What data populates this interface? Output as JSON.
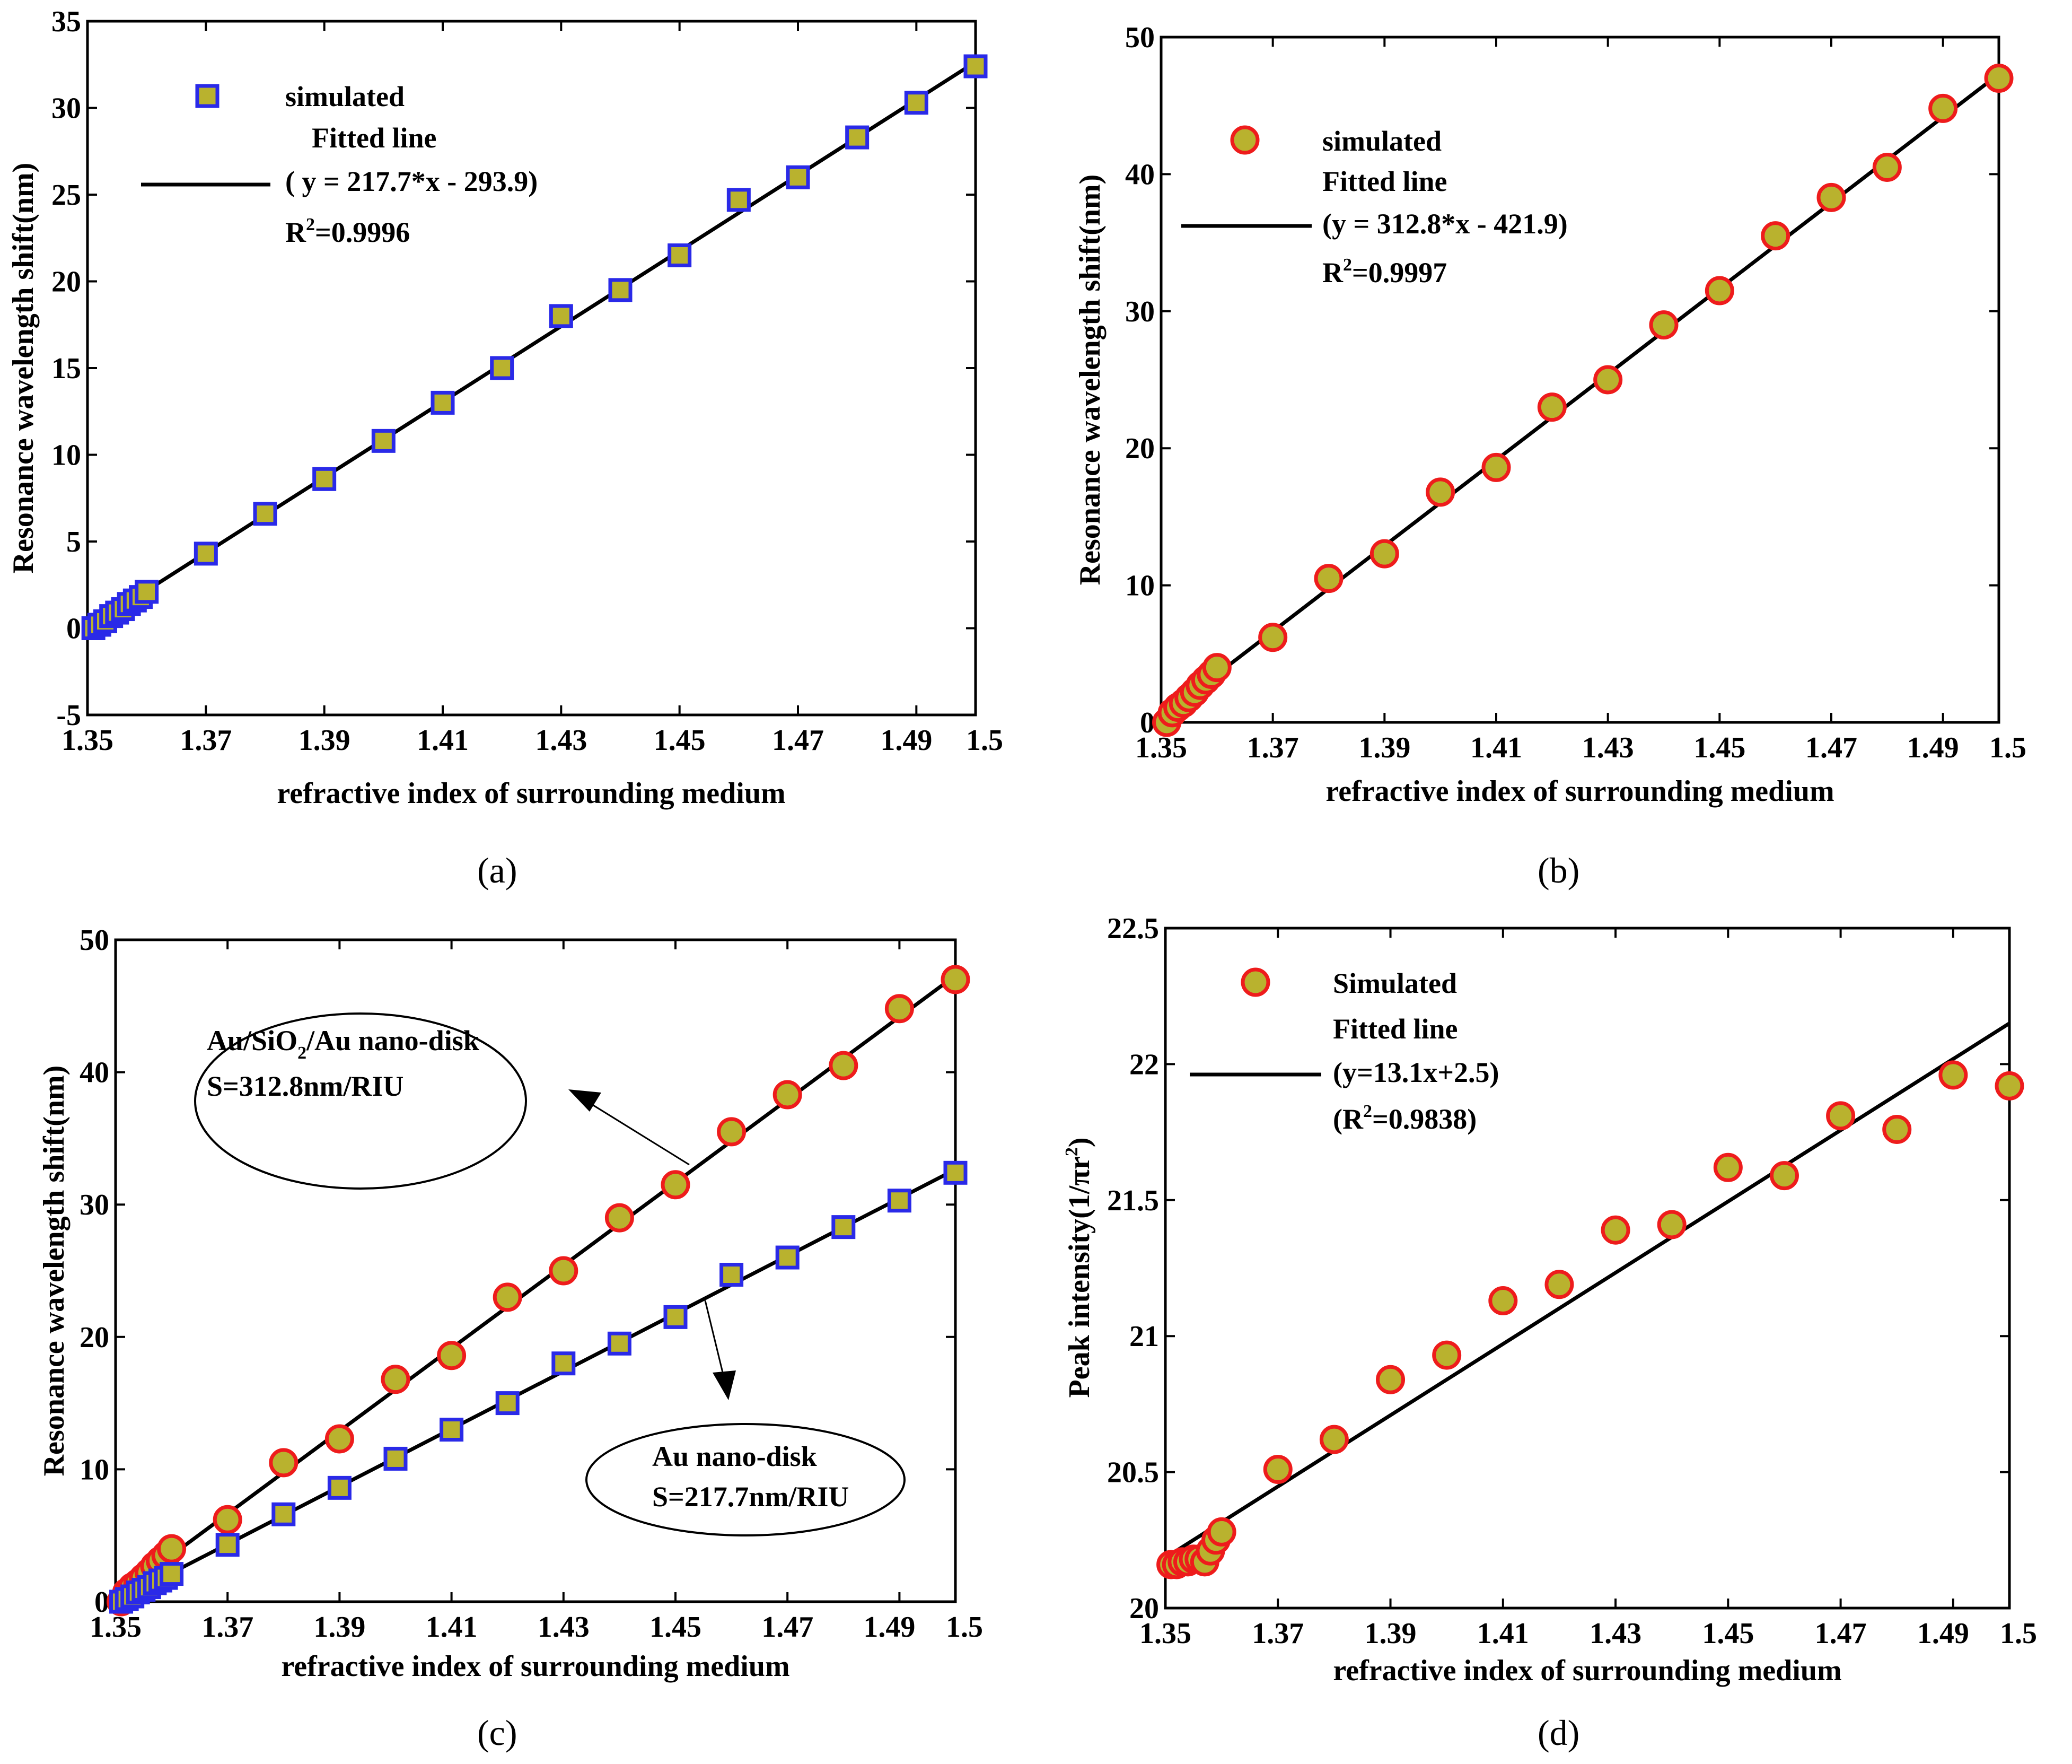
{
  "colors": {
    "marker_fill": "#b9b22e",
    "square_edge": "#2a2ae8",
    "circle_edge": "#ee1c1c",
    "line": "#000000"
  },
  "chart_data": [
    {
      "id": "a",
      "type": "scatter",
      "caption": "(a)",
      "xlabel": "refractive index of surrounding medium",
      "ylabel": "Resonance wavelength shift(nm)",
      "xlim": [
        1.35,
        1.5
      ],
      "ylim": [
        -5,
        35
      ],
      "xticks": [
        1.35,
        1.37,
        1.39,
        1.41,
        1.43,
        1.45,
        1.47,
        1.49,
        1.5
      ],
      "xtick_labels": [
        "1.35",
        "1.37",
        "1.39",
        "1.41",
        "1.43",
        "1.45",
        "1.47",
        "1.49",
        "1.5"
      ],
      "yticks": [
        -5,
        0,
        5,
        10,
        15,
        20,
        25,
        30,
        35
      ],
      "ytick_labels": [
        "-5",
        "0",
        "5",
        "10",
        "15",
        "20",
        "25",
        "30",
        "35"
      ],
      "series": [
        {
          "name": "simulated",
          "marker": "square",
          "x": [
            1.351,
            1.352,
            1.353,
            1.354,
            1.355,
            1.356,
            1.357,
            1.358,
            1.359,
            1.36,
            1.37,
            1.38,
            1.39,
            1.4,
            1.41,
            1.42,
            1.43,
            1.44,
            1.45,
            1.46,
            1.47,
            1.48,
            1.49,
            1.5
          ],
          "y": [
            0,
            0.2,
            0.4,
            0.7,
            0.9,
            1.1,
            1.4,
            1.6,
            1.8,
            2.1,
            4.3,
            6.6,
            8.6,
            10.8,
            13.0,
            15.0,
            18.0,
            19.5,
            21.5,
            24.7,
            26.0,
            28.3,
            30.3,
            32.4
          ]
        }
      ],
      "fit": {
        "name": "Fitted line",
        "slope": 217.7,
        "intercept": -293.9,
        "x_range": [
          1.351,
          1.5
        ]
      },
      "legend": {
        "placement": "top-left",
        "entries": [
          "simulated",
          "Fitted line",
          "( y = 217.7*x - 293.9)"
        ],
        "r2_prefix": "R",
        "r2_sup": "2",
        "r2_value": "=0.9996"
      }
    },
    {
      "id": "b",
      "type": "scatter",
      "caption": "(b)",
      "xlabel": "refractive index of surrounding medium",
      "ylabel": "Resonance wavelength shift(nm)",
      "xlim": [
        1.35,
        1.5
      ],
      "ylim": [
        0,
        50
      ],
      "xticks": [
        1.35,
        1.37,
        1.39,
        1.41,
        1.43,
        1.45,
        1.47,
        1.49,
        1.5
      ],
      "xtick_labels": [
        "1.35",
        "1.37",
        "1.39",
        "1.41",
        "1.43",
        "1.45",
        "1.47",
        "1.49",
        "1.5"
      ],
      "yticks": [
        0,
        10,
        20,
        30,
        40,
        50
      ],
      "ytick_labels": [
        "0",
        "10",
        "20",
        "30",
        "40",
        "50"
      ],
      "series": [
        {
          "name": "simulated",
          "marker": "circle",
          "x": [
            1.351,
            1.352,
            1.353,
            1.354,
            1.355,
            1.356,
            1.357,
            1.358,
            1.359,
            1.36,
            1.37,
            1.38,
            1.39,
            1.4,
            1.41,
            1.42,
            1.43,
            1.44,
            1.45,
            1.46,
            1.47,
            1.48,
            1.49,
            1.5
          ],
          "y": [
            0,
            0.7,
            1.1,
            1.4,
            1.8,
            2.2,
            2.7,
            3.1,
            3.5,
            4.0,
            6.2,
            10.5,
            12.3,
            16.8,
            18.6,
            23.0,
            25.0,
            29.0,
            31.5,
            35.5,
            38.3,
            40.5,
            44.8,
            47.0
          ]
        }
      ],
      "fit": {
        "name": "Fitted line",
        "slope": 312.8,
        "intercept": -421.9,
        "x_range": [
          1.351,
          1.5
        ]
      },
      "legend": {
        "placement": "top-left",
        "entries": [
          "simulated",
          "Fitted line",
          "(y = 312.8*x - 421.9)"
        ],
        "r2_prefix": "R",
        "r2_sup": "2",
        "r2_value": "=0.9997"
      }
    },
    {
      "id": "c",
      "type": "scatter",
      "caption": "(c)",
      "xlabel": "refractive index of surrounding medium",
      "ylabel": "Resonance wavelength shift(nm)",
      "xlim": [
        1.35,
        1.5
      ],
      "ylim": [
        0,
        50
      ],
      "xticks": [
        1.35,
        1.37,
        1.39,
        1.41,
        1.43,
        1.45,
        1.47,
        1.49,
        1.5
      ],
      "xtick_labels": [
        "1.35",
        "1.37",
        "1.39",
        "1.41",
        "1.43",
        "1.45",
        "1.47",
        "1.49",
        "1.5"
      ],
      "yticks": [
        0,
        10,
        20,
        30,
        40,
        50
      ],
      "ytick_labels": [
        "0",
        "10",
        "20",
        "30",
        "40",
        "50"
      ],
      "series": [
        {
          "name": "Au/SiO2/Au nano-disk",
          "marker": "circle",
          "x": [
            1.351,
            1.352,
            1.353,
            1.354,
            1.355,
            1.356,
            1.357,
            1.358,
            1.359,
            1.36,
            1.37,
            1.38,
            1.39,
            1.4,
            1.41,
            1.42,
            1.43,
            1.44,
            1.45,
            1.46,
            1.47,
            1.48,
            1.49,
            1.5
          ],
          "y": [
            0,
            0.7,
            1.1,
            1.4,
            1.8,
            2.2,
            2.7,
            3.1,
            3.5,
            4.0,
            6.2,
            10.5,
            12.3,
            16.8,
            18.6,
            23.0,
            25.0,
            29.0,
            31.5,
            35.5,
            38.3,
            40.5,
            44.8,
            47.0
          ]
        },
        {
          "name": "Au nano-disk",
          "marker": "square",
          "x": [
            1.351,
            1.352,
            1.353,
            1.354,
            1.355,
            1.356,
            1.357,
            1.358,
            1.359,
            1.36,
            1.37,
            1.38,
            1.39,
            1.4,
            1.41,
            1.42,
            1.43,
            1.44,
            1.45,
            1.46,
            1.47,
            1.48,
            1.49,
            1.5
          ],
          "y": [
            0,
            0.2,
            0.4,
            0.7,
            0.9,
            1.1,
            1.4,
            1.6,
            1.8,
            2.1,
            4.3,
            6.6,
            8.6,
            10.8,
            13.0,
            15.0,
            18.0,
            19.5,
            21.5,
            24.7,
            26.0,
            28.3,
            30.3,
            32.4
          ]
        }
      ],
      "fits": [
        {
          "slope": 312.8,
          "intercept": -421.9,
          "x_range": [
            1.351,
            1.5
          ]
        },
        {
          "slope": 217.7,
          "intercept": -293.9,
          "x_range": [
            1.351,
            1.5
          ]
        }
      ],
      "annotations": [
        {
          "line1_a": "Au/SiO",
          "line1_sub": "2",
          "line1_b": "/Au nano-disk",
          "line2": "S=312.8nm/RIU"
        },
        {
          "line1": "Au nano-disk",
          "line2": "S=217.7nm/RIU"
        }
      ]
    },
    {
      "id": "d",
      "type": "scatter",
      "caption": "(d)",
      "xlabel": "refractive index of surrounding medium",
      "ylabel_a": "Peak intensity(1/πr",
      "ylabel_sup": "2",
      "ylabel_b": ")",
      "xlim": [
        1.35,
        1.5
      ],
      "ylim": [
        20,
        22.5
      ],
      "xticks": [
        1.35,
        1.37,
        1.39,
        1.41,
        1.43,
        1.45,
        1.47,
        1.49,
        1.5
      ],
      "xtick_labels": [
        "1.35",
        "1.37",
        "1.39",
        "1.41",
        "1.43",
        "1.45",
        "1.47",
        "1.49",
        "1.5"
      ],
      "yticks": [
        20,
        20.5,
        21,
        21.5,
        22,
        22.5
      ],
      "ytick_labels": [
        "20",
        "20.5",
        "21",
        "21.5",
        "22",
        "22.5"
      ],
      "series": [
        {
          "name": "Simulated",
          "marker": "circle",
          "x": [
            1.351,
            1.352,
            1.353,
            1.354,
            1.355,
            1.356,
            1.357,
            1.358,
            1.359,
            1.36,
            1.37,
            1.38,
            1.39,
            1.4,
            1.41,
            1.42,
            1.43,
            1.44,
            1.45,
            1.46,
            1.47,
            1.48,
            1.49,
            1.5
          ],
          "y": [
            20.16,
            20.16,
            20.17,
            20.17,
            20.18,
            20.18,
            20.17,
            20.21,
            20.25,
            20.28,
            20.51,
            20.62,
            20.84,
            20.93,
            21.13,
            21.19,
            21.39,
            21.41,
            21.62,
            21.59,
            21.81,
            21.76,
            21.96,
            21.92
          ]
        }
      ],
      "fit": {
        "name": "Fitted line",
        "slope": 13.1,
        "intercept": 2.5,
        "x_range": [
          1.351,
          1.5
        ]
      },
      "legend": {
        "placement": "top-left",
        "entries": [
          "Simulated",
          "Fitted line",
          "(y=13.1x+2.5)"
        ],
        "r2_prefix": "(R",
        "r2_sup": "2",
        "r2_value": "=0.9838)"
      }
    }
  ]
}
